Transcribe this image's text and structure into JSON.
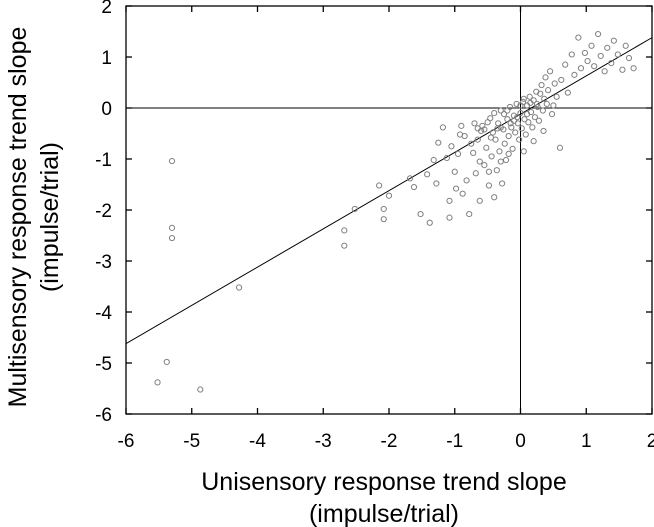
{
  "chart_data": {
    "type": "scatter",
    "title": "",
    "xlabel": [
      "Unisensory response trend slope",
      "(impulse/trial)"
    ],
    "ylabel": [
      "Multisensory response trend slope",
      "(impulse/trial)"
    ],
    "xlim": [
      -6,
      2
    ],
    "ylim": [
      -6,
      2
    ],
    "xticks": [
      -6,
      -5,
      -4,
      -3,
      -2,
      -1,
      0,
      1,
      2
    ],
    "yticks": [
      -6,
      -5,
      -4,
      -3,
      -2,
      -1,
      0,
      1,
      2
    ],
    "zero_lines": true,
    "grid": false,
    "point_color": "#808080",
    "fit_line": {
      "x": [
        -6,
        2
      ],
      "y": [
        -4.62,
        1.38
      ]
    },
    "points": [
      [
        -5.52,
        -5.38
      ],
      [
        -5.38,
        -4.98
      ],
      [
        -4.87,
        -5.52
      ],
      [
        -5.3,
        -1.04
      ],
      [
        -5.3,
        -2.35
      ],
      [
        -5.3,
        -2.55
      ],
      [
        -4.28,
        -3.52
      ],
      [
        -2.68,
        -2.4
      ],
      [
        -2.68,
        -2.7
      ],
      [
        -2.52,
        -1.98
      ],
      [
        -2.15,
        -1.52
      ],
      [
        -2.08,
        -1.98
      ],
      [
        -2.08,
        -2.18
      ],
      [
        -2.0,
        -1.72
      ],
      [
        -1.68,
        -1.38
      ],
      [
        -1.62,
        -1.55
      ],
      [
        -1.52,
        -2.08
      ],
      [
        -1.42,
        -1.3
      ],
      [
        -1.38,
        -2.25
      ],
      [
        -1.32,
        -1.02
      ],
      [
        -1.28,
        -1.48
      ],
      [
        -1.18,
        -0.38
      ],
      [
        -1.12,
        -0.98
      ],
      [
        -1.08,
        -1.82
      ],
      [
        -1.08,
        -2.15
      ],
      [
        -1.0,
        -1.25
      ],
      [
        -0.98,
        -1.58
      ],
      [
        -0.92,
        -0.52
      ],
      [
        -0.88,
        -1.68
      ],
      [
        -0.82,
        -1.42
      ],
      [
        -0.78,
        -2.08
      ],
      [
        -0.72,
        -0.88
      ],
      [
        -0.68,
        -1.28
      ],
      [
        -0.65,
        -0.62
      ],
      [
        -0.62,
        -1.82
      ],
      [
        -0.58,
        -0.35
      ],
      [
        -0.55,
        -1.12
      ],
      [
        -0.52,
        -0.78
      ],
      [
        -0.48,
        -1.52
      ],
      [
        -0.46,
        -0.2
      ],
      [
        -0.44,
        -0.95
      ],
      [
        -0.42,
        -0.48
      ],
      [
        -0.4,
        -1.75
      ],
      [
        -0.38,
        -0.62
      ],
      [
        -0.36,
        -1.22
      ],
      [
        -0.34,
        -0.3
      ],
      [
        -0.32,
        -0.85
      ],
      [
        -0.3,
        -0.05
      ],
      [
        -0.28,
        -1.48
      ],
      [
        -0.26,
        -0.42
      ],
      [
        -0.24,
        -0.7
      ],
      [
        -0.22,
        -1.02
      ],
      [
        -0.2,
        -0.22
      ],
      [
        -0.18,
        -0.55
      ],
      [
        -0.16,
        0.02
      ],
      [
        -0.14,
        -0.38
      ],
      [
        -0.12,
        -0.8
      ],
      [
        -0.1,
        -0.15
      ],
      [
        -0.08,
        -0.48
      ],
      [
        -0.06,
        0.08
      ],
      [
        -0.04,
        -0.3
      ],
      [
        -0.02,
        -0.62
      ],
      [
        0.0,
        -0.1
      ],
      [
        0.02,
        -0.4
      ],
      [
        0.04,
        0.12
      ],
      [
        0.06,
        -0.22
      ],
      [
        0.08,
        -0.52
      ],
      [
        0.1,
        0.05
      ],
      [
        0.12,
        -0.28
      ],
      [
        0.14,
        0.22
      ],
      [
        0.16,
        -0.08
      ],
      [
        0.18,
        -0.38
      ],
      [
        0.2,
        0.15
      ],
      [
        0.22,
        -0.18
      ],
      [
        0.24,
        0.32
      ],
      [
        0.26,
        0.02
      ],
      [
        0.28,
        -0.25
      ],
      [
        0.3,
        0.28
      ],
      [
        0.32,
        0.45
      ],
      [
        0.34,
        -0.05
      ],
      [
        0.36,
        0.18
      ],
      [
        0.38,
        0.6
      ],
      [
        0.4,
        0.08
      ],
      [
        0.42,
        0.35
      ],
      [
        0.45,
        0.72
      ],
      [
        0.48,
        -0.12
      ],
      [
        0.52,
        0.48
      ],
      [
        0.55,
        0.22
      ],
      [
        0.6,
        -0.78
      ],
      [
        0.62,
        0.55
      ],
      [
        0.68,
        0.85
      ],
      [
        0.72,
        0.3
      ],
      [
        0.78,
        1.05
      ],
      [
        0.82,
        0.65
      ],
      [
        0.88,
        1.38
      ],
      [
        0.92,
        0.78
      ],
      [
        0.98,
        1.08
      ],
      [
        1.02,
        0.92
      ],
      [
        1.08,
        1.22
      ],
      [
        1.12,
        0.82
      ],
      [
        1.18,
        1.45
      ],
      [
        1.22,
        1.02
      ],
      [
        1.28,
        0.72
      ],
      [
        1.32,
        1.18
      ],
      [
        1.38,
        0.88
      ],
      [
        1.42,
        1.32
      ],
      [
        1.48,
        1.05
      ],
      [
        1.55,
        0.75
      ],
      [
        1.6,
        1.22
      ],
      [
        1.65,
        0.98
      ],
      [
        1.72,
        0.78
      ],
      [
        -0.7,
        -0.3
      ],
      [
        -0.6,
        -0.45
      ],
      [
        -0.5,
        -0.28
      ],
      [
        -0.4,
        -0.1
      ],
      [
        -0.3,
        -0.38
      ],
      [
        -0.2,
        -0.05
      ],
      [
        -0.1,
        -0.25
      ],
      [
        0.0,
        0.05
      ],
      [
        0.1,
        -0.12
      ],
      [
        -0.55,
        -0.42
      ],
      [
        -0.45,
        -0.58
      ],
      [
        -0.35,
        -0.4
      ],
      [
        -0.25,
        -0.12
      ],
      [
        -0.15,
        -0.3
      ],
      [
        -0.05,
        -0.18
      ],
      [
        0.05,
        0.18
      ],
      [
        0.15,
        0.1
      ],
      [
        0.25,
        0.08
      ],
      [
        -0.85,
        -0.55
      ],
      [
        -0.75,
        -0.7
      ],
      [
        -0.65,
        -0.4
      ],
      [
        -1.25,
        -0.68
      ],
      [
        -1.05,
        -0.75
      ],
      [
        -0.95,
        -0.9
      ],
      [
        -0.9,
        -0.35
      ],
      [
        -0.62,
        -1.05
      ],
      [
        -0.48,
        -1.25
      ],
      [
        -0.3,
        -1.05
      ],
      [
        -0.18,
        -0.9
      ],
      [
        0.05,
        -0.85
      ],
      [
        0.2,
        -0.65
      ],
      [
        0.35,
        -0.45
      ],
      [
        0.5,
        0.05
      ]
    ]
  }
}
